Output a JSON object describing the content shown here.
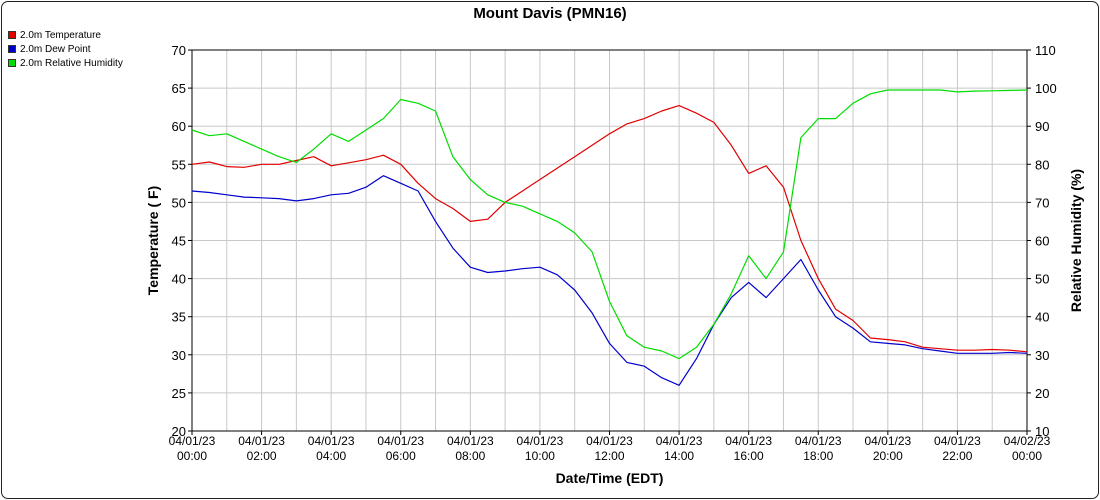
{
  "chart_data": {
    "type": "line",
    "title": "Mount Davis (PMN16)",
    "xlabel": "Date/Time (EDT)",
    "ylabel": "Temperature ( F)",
    "y2label": "Relative Humidity (%)",
    "ylim": [
      20,
      70
    ],
    "y2lim": [
      10,
      110
    ],
    "xlim": [
      "04/01/23 00:00",
      "04/02/23 00:00"
    ],
    "grid": true,
    "legend_position": "top-left",
    "x_ticks": [
      {
        "date": "04/01/23",
        "time": "00:00"
      },
      {
        "date": "04/01/23",
        "time": "02:00"
      },
      {
        "date": "04/01/23",
        "time": "04:00"
      },
      {
        "date": "04/01/23",
        "time": "06:00"
      },
      {
        "date": "04/01/23",
        "time": "08:00"
      },
      {
        "date": "04/01/23",
        "time": "10:00"
      },
      {
        "date": "04/01/23",
        "time": "12:00"
      },
      {
        "date": "04/01/23",
        "time": "14:00"
      },
      {
        "date": "04/01/23",
        "time": "16:00"
      },
      {
        "date": "04/01/23",
        "time": "18:00"
      },
      {
        "date": "04/01/23",
        "time": "20:00"
      },
      {
        "date": "04/01/23",
        "time": "22:00"
      },
      {
        "date": "04/02/23",
        "time": "00:00"
      }
    ],
    "y_ticks": [
      "20",
      "25",
      "30",
      "35",
      "40",
      "45",
      "50",
      "55",
      "60",
      "65",
      "70"
    ],
    "y2_ticks": [
      "10",
      "20",
      "30",
      "40",
      "50",
      "60",
      "70",
      "80",
      "90",
      "100",
      "110"
    ],
    "x": [
      "04/01/23 00:00",
      "04/01/23 00:30",
      "04/01/23 01:00",
      "04/01/23 01:30",
      "04/01/23 02:00",
      "04/01/23 02:30",
      "04/01/23 03:00",
      "04/01/23 03:30",
      "04/01/23 04:00",
      "04/01/23 04:30",
      "04/01/23 05:00",
      "04/01/23 05:30",
      "04/01/23 06:00",
      "04/01/23 06:30",
      "04/01/23 07:00",
      "04/01/23 07:30",
      "04/01/23 08:00",
      "04/01/23 08:30",
      "04/01/23 09:00",
      "04/01/23 09:30",
      "04/01/23 10:00",
      "04/01/23 10:30",
      "04/01/23 11:00",
      "04/01/23 11:30",
      "04/01/23 12:00",
      "04/01/23 12:30",
      "04/01/23 13:00",
      "04/01/23 13:30",
      "04/01/23 14:00",
      "04/01/23 14:30",
      "04/01/23 15:00",
      "04/01/23 15:30",
      "04/01/23 16:00",
      "04/01/23 16:30",
      "04/01/23 17:00",
      "04/01/23 17:30",
      "04/01/23 18:00",
      "04/01/23 18:30",
      "04/01/23 19:00",
      "04/01/23 19:30",
      "04/01/23 20:00",
      "04/01/23 20:30",
      "04/01/23 21:00",
      "04/01/23 21:30",
      "04/01/23 22:00",
      "04/01/23 22:30",
      "04/01/23 23:00",
      "04/01/23 23:30",
      "04/02/23 00:00"
    ],
    "series": [
      {
        "name": "2.0m Temperature",
        "color": "#e00000",
        "axis": "left",
        "values": [
          55,
          55.3,
          54.7,
          54.6,
          55,
          55,
          55.5,
          56,
          54.8,
          55.2,
          55.6,
          56.2,
          55,
          52.5,
          50.5,
          49.2,
          47.5,
          47.8,
          50,
          51.5,
          53,
          54.5,
          56,
          57.5,
          59,
          60.3,
          61,
          62,
          62.7,
          61.7,
          60.5,
          57.5,
          53.8,
          54.8,
          52,
          45,
          40,
          36,
          34.5,
          32.2,
          32,
          31.7,
          31,
          30.8,
          30.6,
          30.6,
          30.7,
          30.6,
          30.4
        ]
      },
      {
        "name": "2.0m Dew Point",
        "color": "#0000cc",
        "axis": "left",
        "values": [
          51.5,
          51.3,
          51,
          50.7,
          50.6,
          50.5,
          50.2,
          50.5,
          51,
          51.2,
          52,
          53.5,
          52.5,
          51.5,
          47.5,
          44,
          41.5,
          40.8,
          41,
          41.3,
          41.5,
          40.5,
          38.5,
          35.5,
          31.5,
          29,
          28.5,
          27,
          26,
          29.5,
          34,
          37.5,
          39.5,
          37.5,
          40,
          42.5,
          38.5,
          35,
          33.5,
          31.7,
          31.5,
          31.3,
          30.8,
          30.5,
          30.2,
          30.2,
          30.2,
          30.3,
          30.2
        ]
      },
      {
        "name": "2.0m Relative Humidity",
        "color": "#00dd00",
        "axis": "right",
        "values": [
          89,
          87.5,
          88,
          86,
          84,
          82,
          80.5,
          84,
          88,
          86,
          89,
          92,
          97,
          96,
          94,
          82,
          76,
          72,
          70,
          69,
          67,
          65,
          62,
          57,
          44,
          35,
          32,
          31,
          29,
          32,
          38,
          46,
          56,
          50,
          57,
          87,
          92,
          92,
          96,
          98.5,
          99.5,
          99.5,
          99.5,
          99.5,
          99,
          99.2,
          99.3,
          99.4,
          99.5
        ]
      }
    ]
  }
}
